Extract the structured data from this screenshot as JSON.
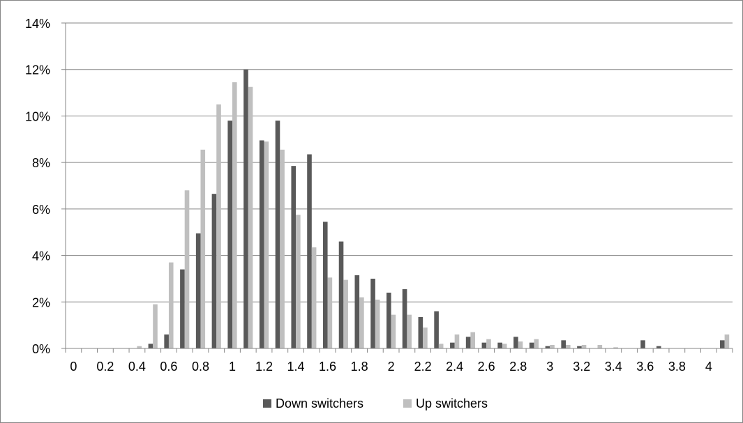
{
  "chart_data": {
    "type": "bar",
    "title": "",
    "xlabel": "",
    "ylabel": "",
    "x": [
      0,
      0.1,
      0.2,
      0.3,
      0.4,
      0.5,
      0.6,
      0.7,
      0.8,
      0.9,
      1.0,
      1.1,
      1.2,
      1.3,
      1.4,
      1.5,
      1.6,
      1.7,
      1.8,
      1.9,
      2.0,
      2.1,
      2.2,
      2.3,
      2.4,
      2.5,
      2.6,
      2.7,
      2.8,
      2.9,
      3.0,
      3.1,
      3.2,
      3.3,
      3.4,
      3.5,
      3.6,
      3.7,
      3.8,
      3.9,
      4.0,
      4.1
    ],
    "x_tick_labels": [
      "0",
      "0.2",
      "0.4",
      "0.6",
      "0.8",
      "1",
      "1.2",
      "1.4",
      "1.6",
      "1.8",
      "2",
      "2.2",
      "2.4",
      "2.6",
      "2.8",
      "3",
      "3.2",
      "3.4",
      "3.6",
      "3.8",
      "4"
    ],
    "y_tick_labels": [
      "0%",
      "2%",
      "4%",
      "6%",
      "8%",
      "10%",
      "12%",
      "14%"
    ],
    "ylim": [
      0,
      14
    ],
    "y_unit": "%",
    "grid": "horizontal",
    "legend_position": "bottom",
    "series": [
      {
        "name": "Down switchers",
        "color": "#595959",
        "values": [
          0,
          0,
          0,
          0,
          0,
          0.2,
          0.6,
          3.4,
          4.95,
          6.65,
          9.8,
          12.0,
          8.95,
          9.8,
          7.85,
          8.35,
          5.45,
          4.6,
          3.15,
          3.0,
          2.4,
          2.55,
          1.35,
          1.6,
          0.25,
          0.5,
          0.25,
          0.25,
          0.5,
          0.25,
          0.1,
          0.35,
          0.1,
          0,
          0,
          0,
          0.35,
          0.1,
          0,
          0,
          0,
          0.35
        ]
      },
      {
        "name": "Up switchers",
        "color": "#bfbfbf",
        "values": [
          0,
          0,
          0,
          0,
          0.1,
          1.9,
          3.7,
          6.8,
          8.55,
          10.5,
          11.45,
          11.25,
          8.9,
          8.55,
          5.75,
          4.35,
          3.05,
          2.95,
          2.2,
          2.1,
          1.45,
          1.45,
          0.9,
          0.2,
          0.6,
          0.7,
          0.4,
          0.2,
          0.3,
          0.4,
          0.15,
          0.15,
          0.15,
          0.15,
          0.05,
          0,
          0,
          0,
          0,
          0,
          0,
          0.6
        ]
      }
    ]
  }
}
